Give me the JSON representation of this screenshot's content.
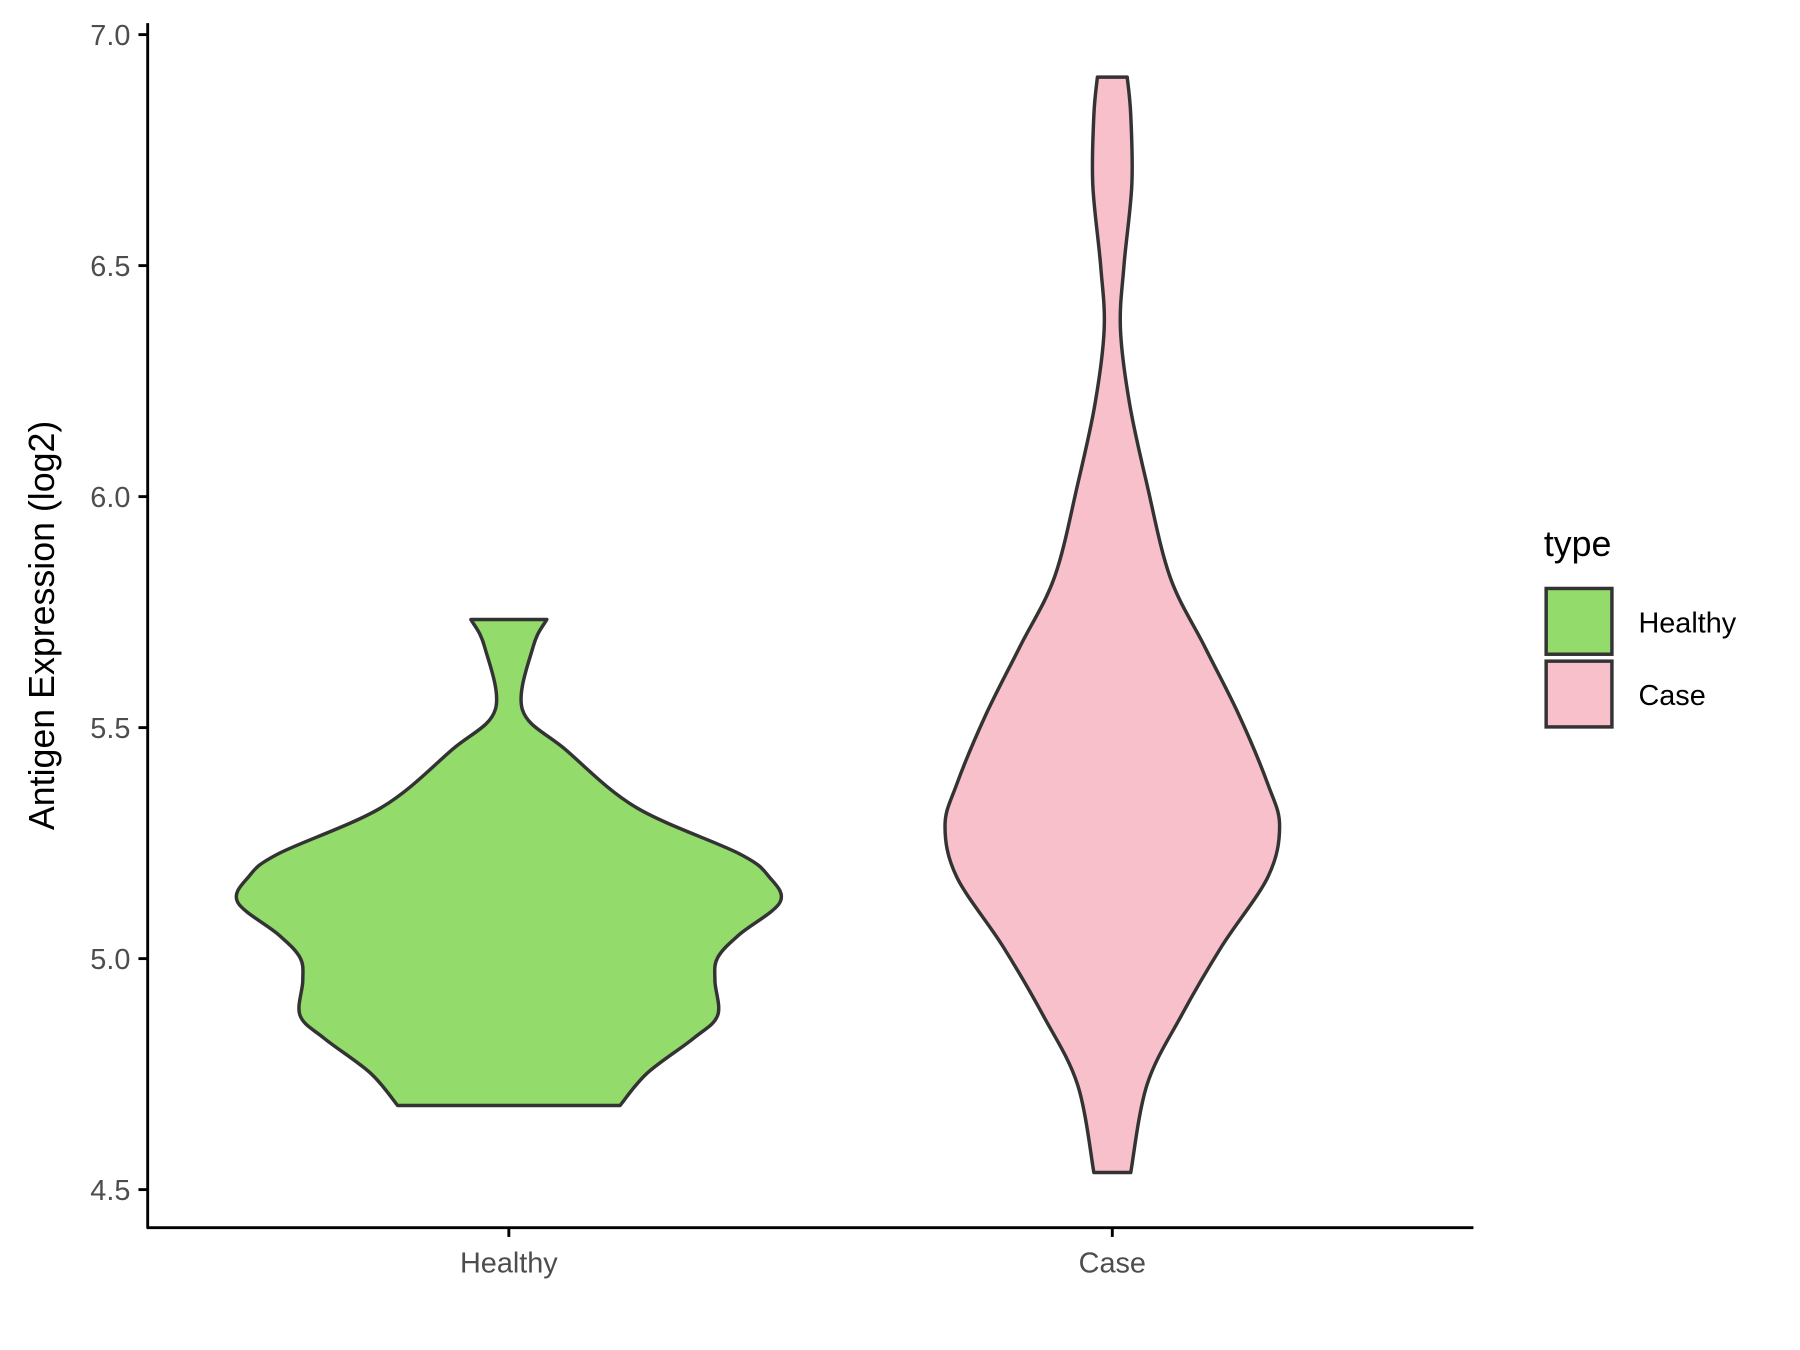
{
  "chart_data": {
    "type": "violin",
    "title": "",
    "xlabel": "",
    "ylabel": "Antigen Expression (log2)",
    "ylim": [
      4.45,
      7.02
    ],
    "yticks": [
      "4.5",
      "5.0",
      "5.5",
      "6.0",
      "6.5",
      "7.0"
    ],
    "categories": [
      "Healthy",
      "Case"
    ],
    "grid": false,
    "legend": {
      "title": "type",
      "placement": "right",
      "entries": [
        "Healthy",
        "Case"
      ]
    },
    "series": [
      {
        "name": "Healthy",
        "color": "#93DB6A",
        "y": [
          5.734,
          5.676,
          5.539,
          5.452,
          5.327,
          5.227,
          5.177,
          5.122,
          5.052,
          5.002,
          4.952,
          4.877,
          4.827,
          4.752,
          4.682
        ],
        "density": [
          0.14,
          0.09,
          0.05,
          0.21,
          0.47,
          0.85,
          0.96,
          1.0,
          0.85,
          0.77,
          0.76,
          0.77,
          0.68,
          0.51,
          0.41
        ]
      },
      {
        "name": "Case",
        "color": "#F8C0CB",
        "y": [
          6.908,
          6.826,
          6.675,
          6.5,
          6.363,
          6.2,
          6.026,
          5.826,
          5.676,
          5.526,
          5.377,
          5.287,
          5.177,
          5.027,
          4.877,
          4.727,
          4.537
        ],
        "density": [
          0.055,
          0.068,
          0.072,
          0.043,
          0.03,
          0.064,
          0.128,
          0.213,
          0.34,
          0.468,
          0.574,
          0.617,
          0.574,
          0.404,
          0.255,
          0.128,
          0.068
        ]
      }
    ],
    "outline_color": "#333333"
  }
}
